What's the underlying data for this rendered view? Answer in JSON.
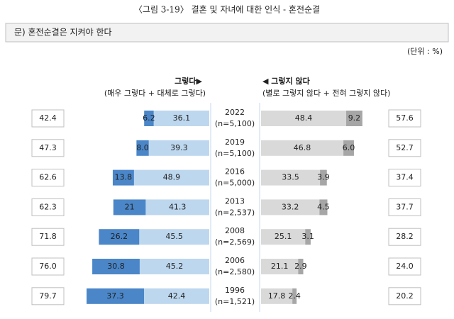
{
  "chart_data": {
    "type": "diverging_bar",
    "title": "〈그림 3-19〉 결혼 및 자녀에 대한 인식 - 혼전순결",
    "question": "문) 혼전순결은 지켜야 한다",
    "unit": "(단위 : %)",
    "left_header": "그렇다▶",
    "left_subheader": "(매우 그렇다 + 대체로 그렇다)",
    "right_header": "◀ 그렇지 않다",
    "right_subheader": "(별로 그렇지 않다 + 전혀 그렇지 않다)",
    "categories": [
      "2022",
      "2019",
      "2016",
      "2013",
      "2008",
      "2006",
      "1996"
    ],
    "sample_sizes": [
      "(n=5,100)",
      "(n=5,100)",
      "(n=5,000)",
      "(n=2,537)",
      "(n=2,569)",
      "(n=2,580)",
      "(n=1,521)"
    ],
    "left_totals": {
      "values": [
        42.4,
        47.3,
        62.6,
        62.3,
        71.8,
        76.0,
        79.7
      ],
      "value_labels": [
        "42.4",
        "47.3",
        "62.6",
        "62.3",
        "71.8",
        "76.0",
        "79.7"
      ]
    },
    "right_totals": {
      "values": [
        57.6,
        52.7,
        37.4,
        37.7,
        28.2,
        24.0,
        20.2
      ],
      "value_labels": [
        "57.6",
        "52.7",
        "37.4",
        "37.7",
        "28.2",
        "24.0",
        "20.2"
      ]
    },
    "series": [
      {
        "side": "left",
        "color": "#4a86c8",
        "values": [
          6.2,
          8.0,
          13.8,
          21,
          26.2,
          30.8,
          37.3
        ],
        "value_labels": [
          "6.2",
          "8.0",
          "13.8",
          "21",
          "26.2",
          "30.8",
          "37.3"
        ]
      },
      {
        "side": "left",
        "color": "#bdd7ee",
        "values": [
          36.1,
          39.3,
          48.9,
          41.3,
          45.5,
          45.2,
          42.4
        ],
        "value_labels": [
          "36.1",
          "39.3",
          "48.9",
          "41.3",
          "45.5",
          "45.2",
          "42.4"
        ]
      },
      {
        "side": "right",
        "color": "#d9d9d9",
        "values": [
          48.4,
          46.8,
          33.5,
          33.2,
          25.1,
          21.1,
          17.8
        ],
        "value_labels": [
          "48.4",
          "46.8",
          "33.5",
          "33.2",
          "25.1",
          "21.1",
          "17.8"
        ]
      },
      {
        "side": "right",
        "color": "#a6a6a6",
        "values": [
          9.2,
          6.0,
          3.9,
          4.5,
          3.1,
          2.9,
          2.4
        ],
        "value_labels": [
          "9.2",
          "6.0",
          "3.9",
          "4.5",
          "3.1",
          "2.9",
          "2.4"
        ]
      }
    ]
  }
}
